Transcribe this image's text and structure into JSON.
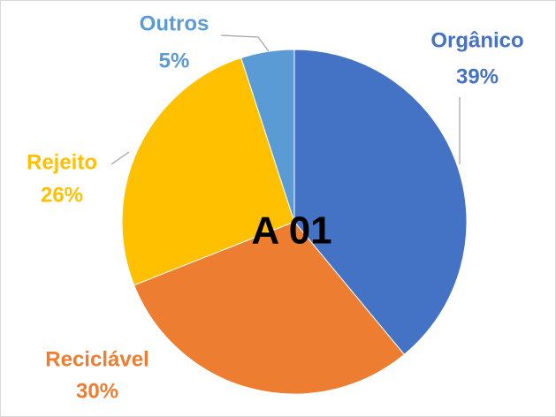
{
  "chart_data": {
    "type": "pie",
    "center_label": "A 01",
    "categories": [
      "Orgânico",
      "Reciclável",
      "Rejeito",
      "Outros"
    ],
    "values": [
      39,
      30,
      26,
      5
    ],
    "value_labels": [
      "39%",
      "30%",
      "26%",
      "5%"
    ],
    "colors": [
      "#4472c4",
      "#ed7d31",
      "#ffc000",
      "#5b9bd5"
    ]
  }
}
